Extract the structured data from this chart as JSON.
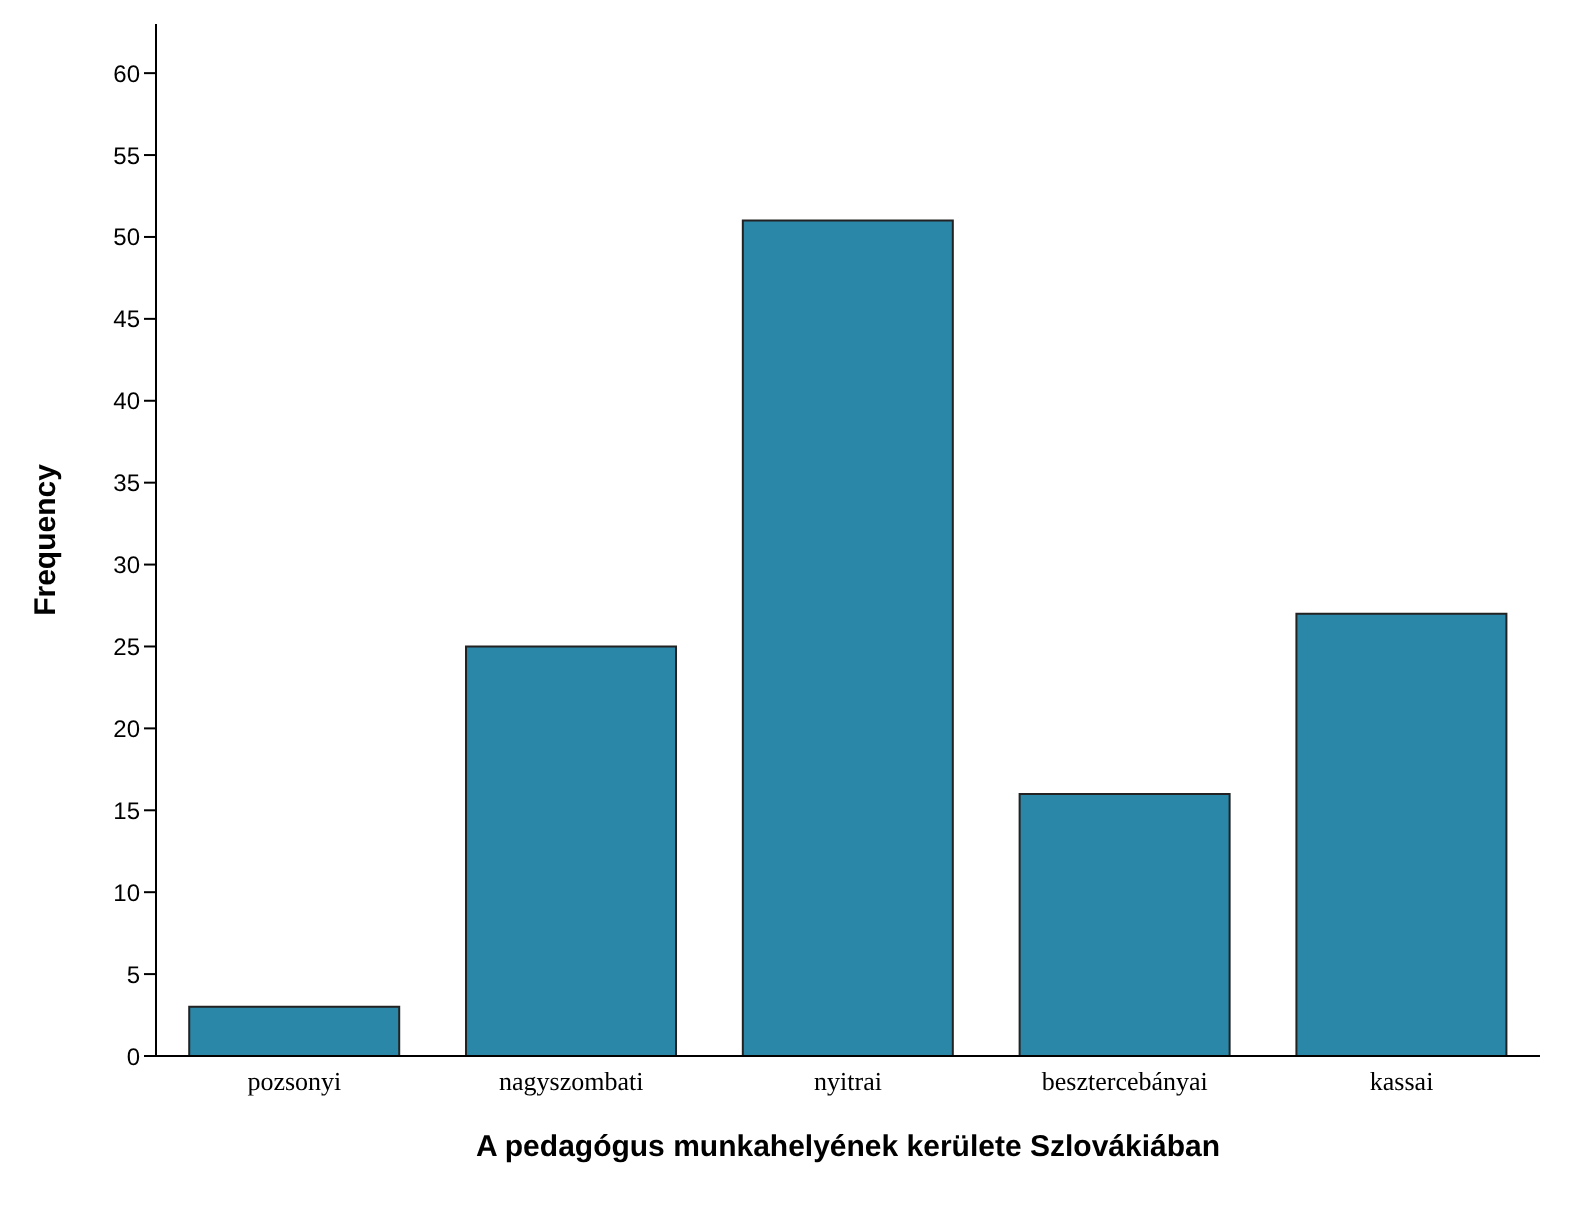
{
  "chart_data": {
    "type": "bar",
    "xlabel": "A pedagógus munkahelyének kerülete Szlovákiában",
    "ylabel": "Frequency",
    "categories": [
      "pozsonyi",
      "nagyszombati",
      "nyitrai",
      "besztercebányai",
      "kassai"
    ],
    "values": [
      3,
      25,
      51,
      16,
      27
    ],
    "color": "#2a87a8",
    "ylim": [
      0,
      63
    ],
    "yticks": [
      0,
      5,
      10,
      15,
      20,
      25,
      30,
      35,
      40,
      45,
      50,
      55,
      60
    ],
    "grid": false
  }
}
